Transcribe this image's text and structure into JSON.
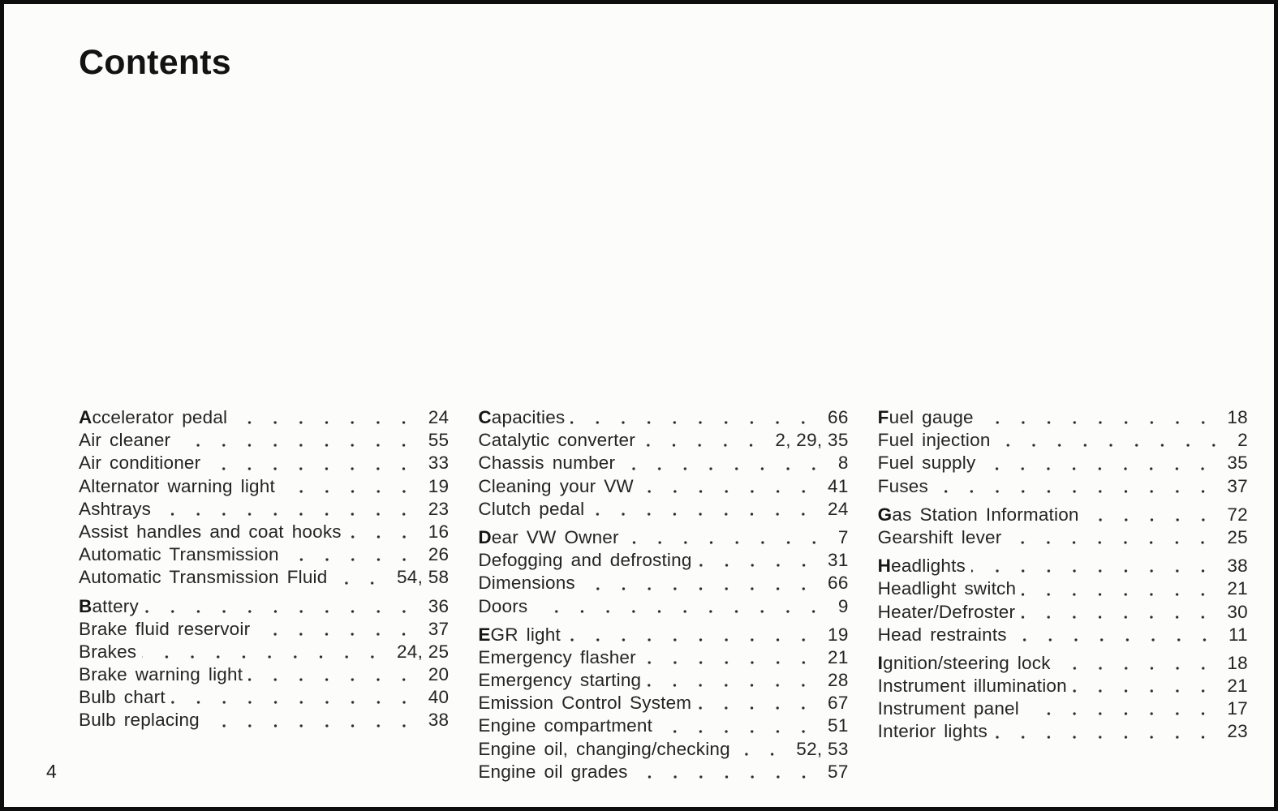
{
  "page": {
    "title": "Contents",
    "page_number": "4"
  },
  "colors": {
    "paper": "#fcfcfa",
    "ink": "#242424",
    "frame": "#0e0e0e"
  },
  "toc": {
    "columns": [
      {
        "groups": [
          {
            "entries": [
              {
                "label": "Accelerator pedal",
                "pages": "24"
              },
              {
                "label": "Air cleaner",
                "pages": "55"
              },
              {
                "label": "Air conditioner",
                "pages": "33"
              },
              {
                "label": "Alternator warning light",
                "pages": "19"
              },
              {
                "label": "Ashtrays",
                "pages": "23"
              },
              {
                "label": "Assist handles and coat hooks",
                "pages": "16"
              },
              {
                "label": "Automatic Transmission",
                "pages": "26"
              },
              {
                "label": "Automatic Transmission Fluid",
                "pages": "54, 58"
              }
            ]
          },
          {
            "entries": [
              {
                "label": "Battery",
                "pages": "36"
              },
              {
                "label": "Brake fluid reservoir",
                "pages": "37"
              },
              {
                "label": "Brakes",
                "pages": "24, 25"
              },
              {
                "label": "Brake warning light",
                "pages": "20"
              },
              {
                "label": "Bulb chart",
                "pages": "40"
              },
              {
                "label": "Bulb replacing",
                "pages": "38"
              }
            ]
          }
        ]
      },
      {
        "groups": [
          {
            "entries": [
              {
                "label": "Capacities",
                "pages": "66"
              },
              {
                "label": "Catalytic converter",
                "pages": "2, 29, 35"
              },
              {
                "label": "Chassis number",
                "pages": "8"
              },
              {
                "label": "Cleaning your VW",
                "pages": "41"
              },
              {
                "label": "Clutch pedal",
                "pages": "24"
              }
            ]
          },
          {
            "entries": [
              {
                "label": "Dear VW Owner",
                "pages": "7"
              },
              {
                "label": "Defogging and defrosting",
                "pages": "31"
              },
              {
                "label": "Dimensions",
                "pages": "66"
              },
              {
                "label": "Doors",
                "pages": "9"
              }
            ]
          },
          {
            "entries": [
              {
                "label": "EGR light",
                "pages": "19"
              },
              {
                "label": "Emergency flasher",
                "pages": "21"
              },
              {
                "label": "Emergency starting",
                "pages": "28"
              },
              {
                "label": "Emission Control System",
                "pages": "67"
              },
              {
                "label": "Engine compartment",
                "pages": "51"
              },
              {
                "label": "Engine oil, changing/checking",
                "pages": "52, 53"
              },
              {
                "label": "Engine oil grades",
                "pages": "57"
              }
            ]
          }
        ]
      },
      {
        "groups": [
          {
            "entries": [
              {
                "label": "Fuel gauge",
                "pages": "18"
              },
              {
                "label": "Fuel injection",
                "pages": "2"
              },
              {
                "label": "Fuel supply",
                "pages": "35"
              },
              {
                "label": "Fuses",
                "pages": "37"
              }
            ]
          },
          {
            "entries": [
              {
                "label": "Gas Station Information",
                "pages": "72"
              },
              {
                "label": "Gearshift lever",
                "pages": "25"
              }
            ]
          },
          {
            "entries": [
              {
                "label": "Headlights",
                "pages": "38"
              },
              {
                "label": "Headlight switch",
                "pages": "21"
              },
              {
                "label": "Heater/Defroster",
                "pages": "30"
              },
              {
                "label": "Head restraints",
                "pages": "11"
              }
            ]
          },
          {
            "entries": [
              {
                "label": "Ignition/steering lock",
                "pages": "18"
              },
              {
                "label": "Instrument illumination",
                "pages": "21"
              },
              {
                "label": "Instrument panel",
                "pages": "17"
              },
              {
                "label": "Interior lights",
                "pages": "23"
              }
            ]
          }
        ]
      }
    ]
  }
}
